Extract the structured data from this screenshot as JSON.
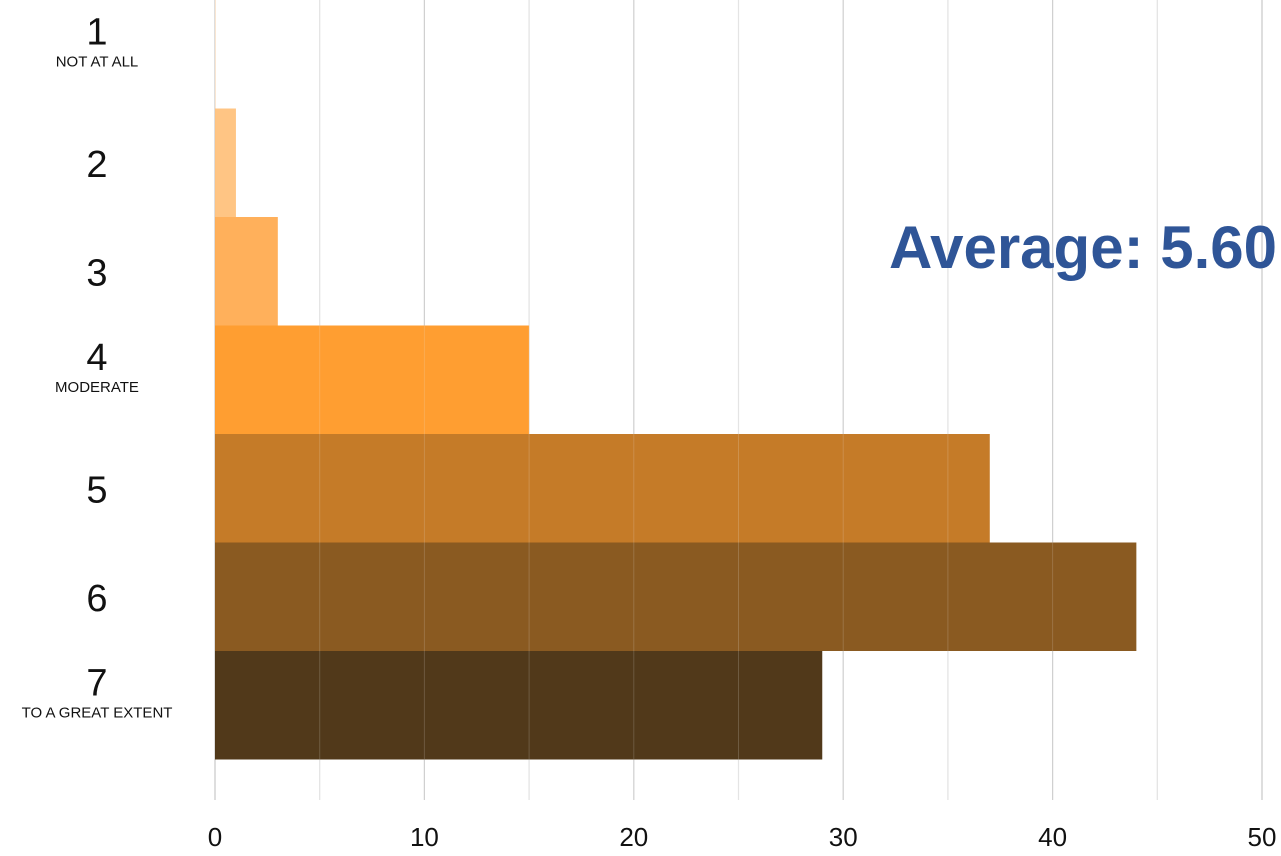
{
  "chart_data": {
    "type": "bar",
    "orientation": "horizontal",
    "categories": [
      "1",
      "2",
      "3",
      "4",
      "5",
      "6",
      "7"
    ],
    "category_sublabels": [
      "NOT AT ALL",
      "",
      "",
      "MODERATE",
      "",
      "",
      "TO A GREAT EXTENT"
    ],
    "values": [
      0,
      1,
      3,
      15,
      37,
      44,
      29
    ],
    "colors": [
      "#fde3c8",
      "#ffc07a",
      "#ffa94d",
      "#ff961f",
      "#c07016",
      "#804c0e",
      "#422807"
    ],
    "xlim": [
      0,
      50
    ],
    "xticks": [
      0,
      10,
      20,
      30,
      40,
      50
    ],
    "grid": true,
    "annotation": "Average: 5.60",
    "annotation_color": "#2f5597",
    "title": "",
    "xlabel": "",
    "ylabel": ""
  }
}
